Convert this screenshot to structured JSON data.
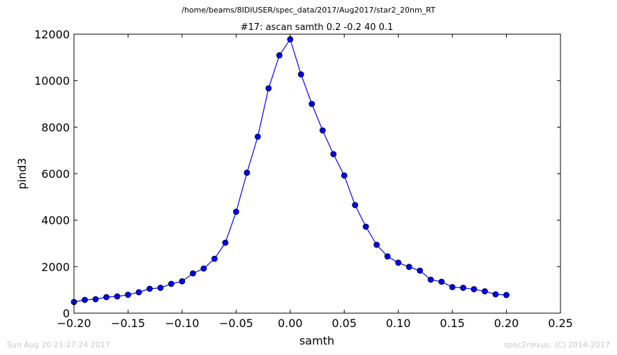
{
  "header": {
    "path": "/home/beams/8IDIUSER/spec_data/2017/Aug2017/star2_20nm_RT"
  },
  "footer": {
    "timestamp": "Sun Aug 20 21:27:24 2017",
    "credit": "spec2nexus, (C) 2014-2017"
  },
  "chart_data": {
    "type": "line",
    "title": "#17: ascan  samth 0.2 -0.2  40 0.1",
    "xlabel": "samth",
    "ylabel": "pind3",
    "xlim": [
      -0.2,
      0.25
    ],
    "ylim": [
      0,
      12000
    ],
    "xticks": [
      "-0.20",
      "-0.15",
      "-0.10",
      "-0.05",
      "0.00",
      "0.05",
      "0.10",
      "0.15",
      "0.20",
      "0.25"
    ],
    "yticks": [
      "0",
      "2000",
      "4000",
      "6000",
      "8000",
      "10000",
      "12000"
    ],
    "grid": false,
    "line_color": "#0000ff",
    "marker": "circle",
    "series": [
      {
        "x": [
          -0.2,
          -0.19,
          -0.18,
          -0.17,
          -0.16,
          -0.15,
          -0.14,
          -0.13,
          -0.12,
          -0.11,
          -0.1,
          -0.09,
          -0.08,
          -0.07,
          -0.06,
          -0.05,
          -0.04,
          -0.03,
          -0.02,
          -0.01,
          0.0,
          0.01,
          0.02,
          0.03,
          0.04,
          0.05,
          0.06,
          0.07,
          0.08,
          0.09,
          0.1,
          0.11,
          0.12,
          0.13,
          0.14,
          0.15,
          0.16,
          0.17,
          0.18,
          0.19,
          0.2
        ],
        "y": [
          480,
          570,
          600,
          690,
          720,
          790,
          900,
          1050,
          1090,
          1260,
          1370,
          1710,
          1920,
          2340,
          3030,
          4360,
          6040,
          7590,
          9670,
          11090,
          11780,
          10270,
          9000,
          7860,
          6840,
          5920,
          4650,
          3720,
          2940,
          2440,
          2170,
          1990,
          1830,
          1440,
          1350,
          1120,
          1090,
          1030,
          940,
          810,
          780
        ]
      }
    ]
  }
}
